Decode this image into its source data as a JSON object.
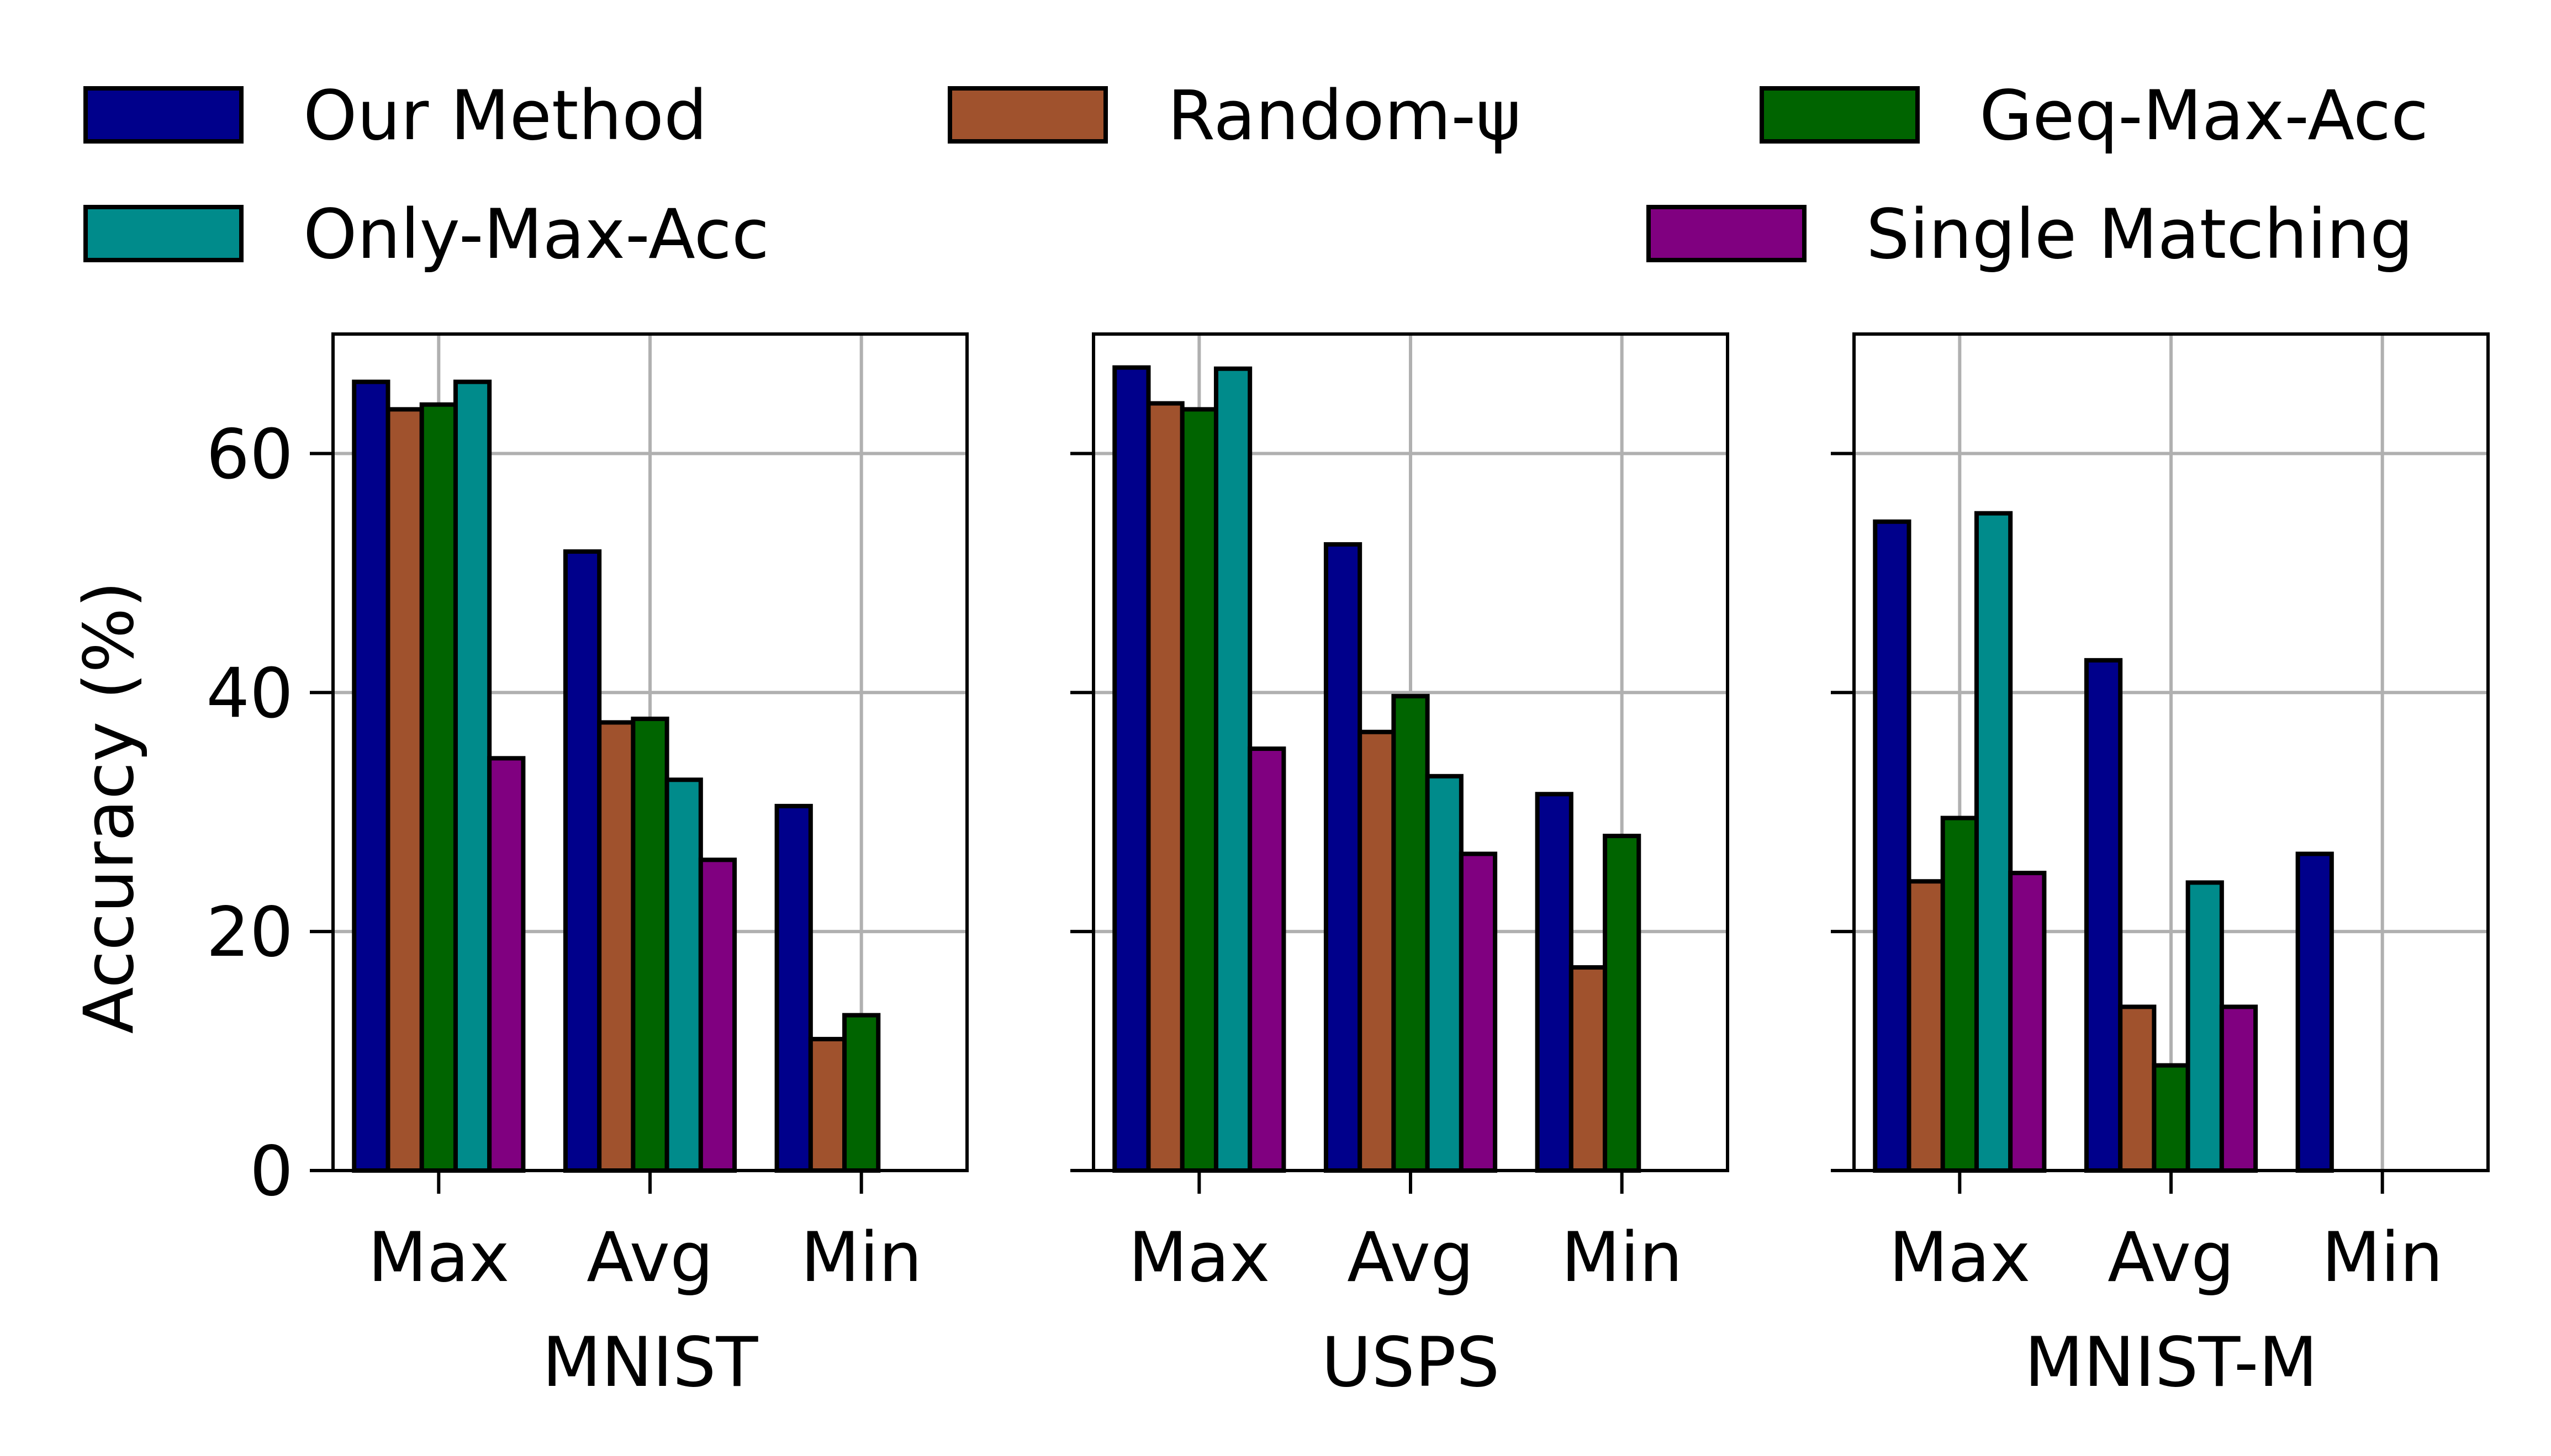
{
  "legend": {
    "placement": "top",
    "entries": [
      {
        "label": "Our Method",
        "color": "#00008b"
      },
      {
        "label": "Random-ψ",
        "color": "#a0522d"
      },
      {
        "label": "Geq-Max-Acc",
        "color": "#006400"
      },
      {
        "label": "Only-Max-Acc",
        "color": "#008b8b"
      },
      {
        "label": "Single Matching",
        "color": "#800080"
      }
    ]
  },
  "chart_data": [
    {
      "type": "bar",
      "xlabel": "MNIST",
      "ylabel": "Accuracy (%)",
      "ylim": [
        0,
        70
      ],
      "yticks": [
        0,
        20,
        40,
        60
      ],
      "grid": true,
      "categories": [
        "Max",
        "Avg",
        "Min"
      ],
      "series": [
        {
          "name": "Our Method",
          "color": "#00008b",
          "values": [
            66,
            51.8,
            30.5
          ]
        },
        {
          "name": "Random-ψ",
          "color": "#a0522d",
          "values": [
            63.7,
            37.5,
            11
          ]
        },
        {
          "name": "Geq-Max-Acc",
          "color": "#006400",
          "values": [
            64.1,
            37.8,
            13
          ]
        },
        {
          "name": "Only-Max-Acc",
          "color": "#008b8b",
          "values": [
            66,
            32.7,
            0
          ]
        },
        {
          "name": "Single Matching",
          "color": "#800080",
          "values": [
            34.5,
            26,
            0
          ]
        }
      ]
    },
    {
      "type": "bar",
      "xlabel": "USPS",
      "ylabel": "",
      "ylim": [
        0,
        70
      ],
      "yticks": [
        0,
        20,
        40,
        60
      ],
      "grid": true,
      "categories": [
        "Max",
        "Avg",
        "Min"
      ],
      "series": [
        {
          "name": "Our Method",
          "color": "#00008b",
          "values": [
            67.2,
            52.4,
            31.5
          ]
        },
        {
          "name": "Random-ψ",
          "color": "#a0522d",
          "values": [
            64.2,
            36.7,
            17
          ]
        },
        {
          "name": "Geq-Max-Acc",
          "color": "#006400",
          "values": [
            63.7,
            39.7,
            28
          ]
        },
        {
          "name": "Only-Max-Acc",
          "color": "#008b8b",
          "values": [
            67.1,
            33,
            0
          ]
        },
        {
          "name": "Single Matching",
          "color": "#800080",
          "values": [
            35.3,
            26.5,
            0
          ]
        }
      ]
    },
    {
      "type": "bar",
      "xlabel": "MNIST-M",
      "ylabel": "",
      "ylim": [
        0,
        70
      ],
      "yticks": [
        0,
        20,
        40,
        60
      ],
      "grid": true,
      "categories": [
        "Max",
        "Avg",
        "Min"
      ],
      "series": [
        {
          "name": "Our Method",
          "color": "#00008b",
          "values": [
            54.3,
            42.7,
            26.5
          ]
        },
        {
          "name": "Random-ψ",
          "color": "#a0522d",
          "values": [
            24.2,
            13.7,
            0
          ]
        },
        {
          "name": "Geq-Max-Acc",
          "color": "#006400",
          "values": [
            29.5,
            8.8,
            0
          ]
        },
        {
          "name": "Only-Max-Acc",
          "color": "#008b8b",
          "values": [
            55,
            24.1,
            0
          ]
        },
        {
          "name": "Single Matching",
          "color": "#800080",
          "values": [
            24.9,
            13.7,
            0
          ]
        }
      ]
    }
  ]
}
